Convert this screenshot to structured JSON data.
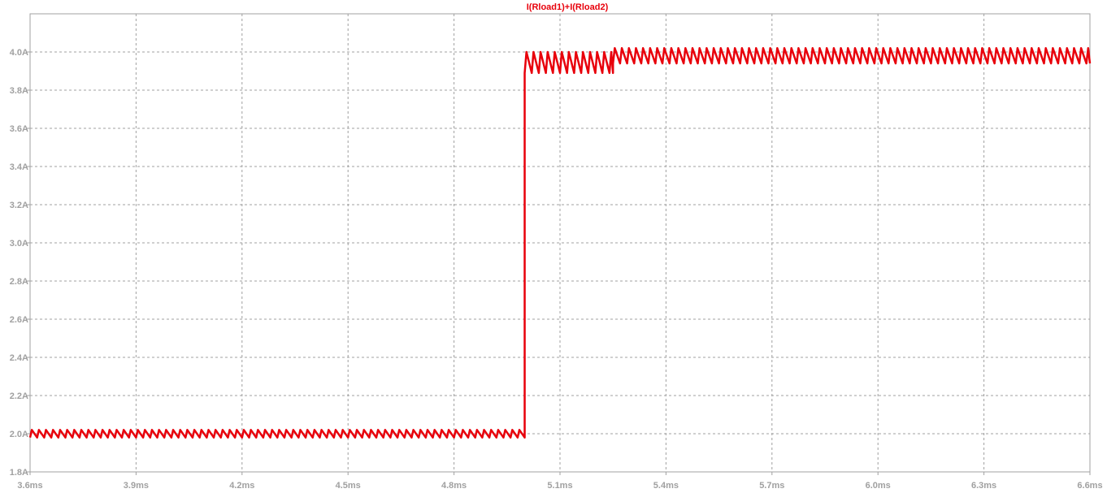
{
  "chart_data": {
    "type": "line",
    "title": "I(Rload1)+I(Rload2)",
    "xlabel": "",
    "ylabel": "",
    "xlim": [
      3.6,
      6.6
    ],
    "ylim": [
      1.8,
      4.2
    ],
    "x_unit": "ms",
    "y_unit": "A",
    "x_ticks": [
      "3.6ms",
      "3.9ms",
      "4.2ms",
      "4.5ms",
      "4.8ms",
      "5.1ms",
      "5.4ms",
      "5.7ms",
      "6.0ms",
      "6.3ms",
      "6.6ms"
    ],
    "y_ticks": [
      "1.8A",
      "2.0A",
      "2.2A",
      "2.4A",
      "2.6A",
      "2.8A",
      "3.0A",
      "3.2A",
      "3.4A",
      "3.6A",
      "3.8A",
      "4.0A"
    ],
    "grid": true,
    "series": [
      {
        "name": "I(Rload1)+I(Rload2)",
        "segments": [
          {
            "x_start": 3.6,
            "x_end": 5.0,
            "ripple_min": 1.98,
            "ripple_max": 2.02,
            "ripple_period": 0.02
          },
          {
            "x_start": 5.0,
            "x_end": 5.25,
            "ripple_min": 3.89,
            "ripple_max": 4.0,
            "ripple_period": 0.02
          },
          {
            "x_start": 5.25,
            "x_end": 6.6,
            "ripple_min": 3.94,
            "ripple_max": 4.02,
            "ripple_period": 0.02
          }
        ]
      }
    ],
    "colors": {
      "series": "#e8000b",
      "grid": "#a0a0a0",
      "axis": "#a0a0a0",
      "tick_label": "#a0a0a0",
      "title": "#e8000b",
      "background": "#ffffff"
    }
  }
}
